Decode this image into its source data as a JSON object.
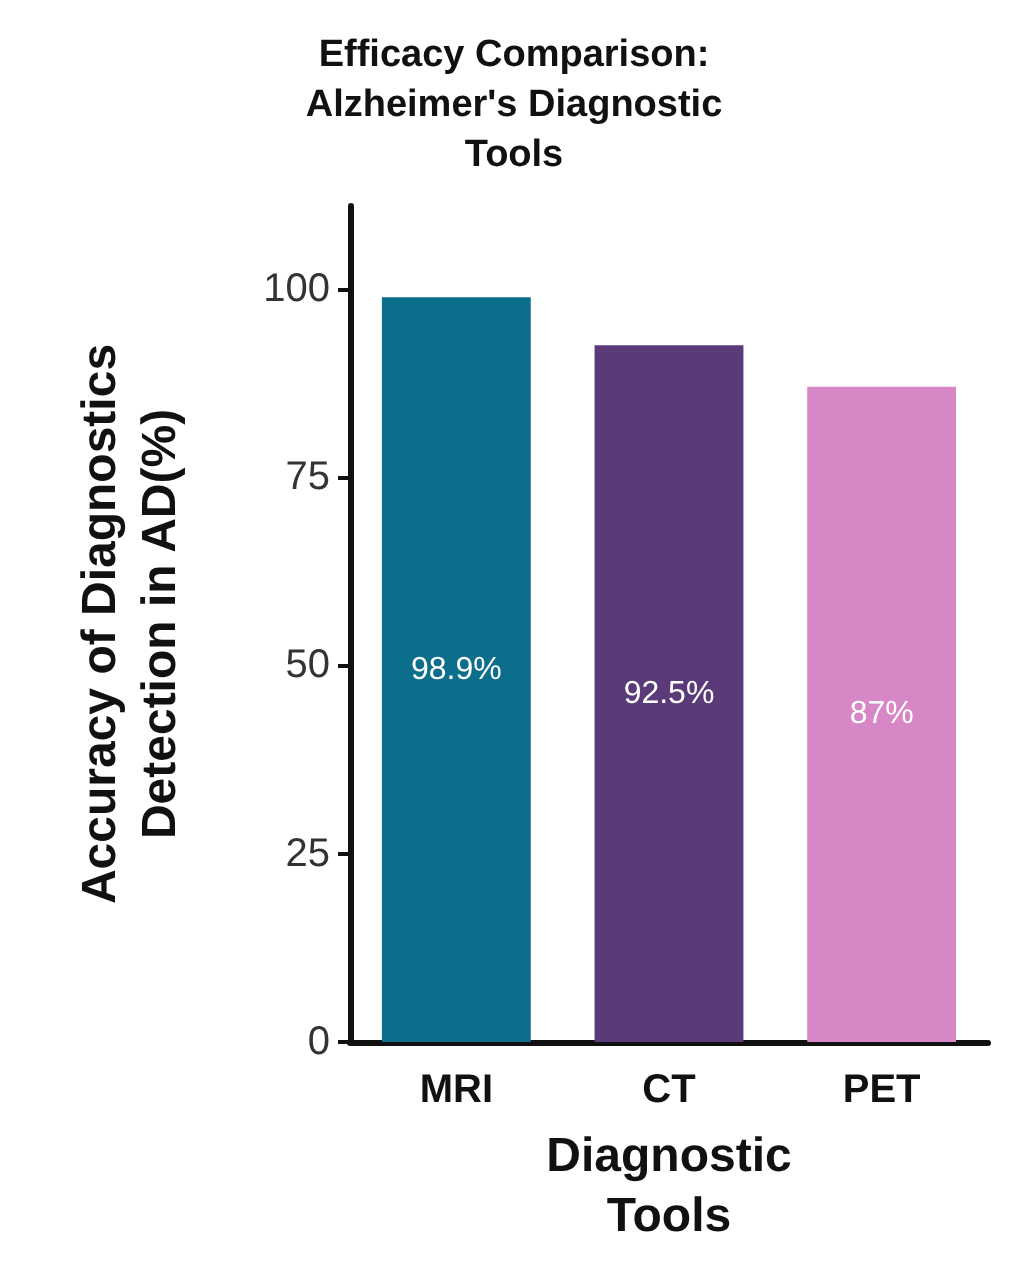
{
  "chart_data": {
    "type": "bar",
    "title": "Efficacy Comparison:\nAlzheimer's Diagnostic\nTools",
    "xlabel": "Diagnostic\nTools",
    "ylabel": "Accuracy of Diagnostics\nDetection in AD(%)",
    "categories": [
      "MRI",
      "CT",
      "PET"
    ],
    "values": [
      98.9,
      92.5,
      87
    ],
    "colors": [
      "#0b6f8c",
      "#5a3a78",
      "#d786c6"
    ],
    "value_labels": [
      "98.9%",
      "92.5%",
      "87%"
    ],
    "ylim": [
      0,
      111
    ],
    "yticks": [
      0,
      25,
      50,
      75,
      100
    ],
    "grid": false
  }
}
